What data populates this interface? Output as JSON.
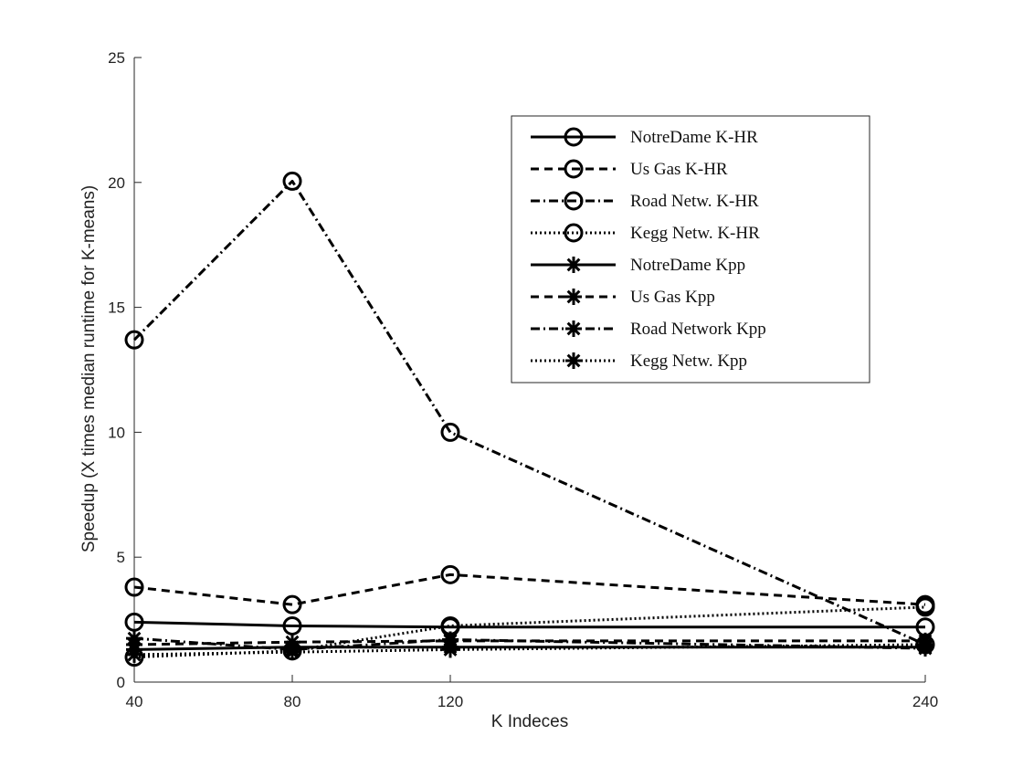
{
  "chart_data": {
    "type": "line",
    "title": "",
    "xlabel": "K Indeces",
    "ylabel": "Speedup (X times median runtime for K-means)",
    "x_ticks": [
      "40",
      "80",
      "120",
      "240"
    ],
    "y_ticks": [
      "0",
      "5",
      "10",
      "15",
      "20",
      "25"
    ],
    "ylim": [
      0,
      25
    ],
    "grid": false,
    "legend_position": "top-right",
    "series": [
      {
        "name": "NotreDame K-HR",
        "line_style": "solid",
        "marker": "circle",
        "values": [
          2.4,
          2.25,
          2.2,
          2.2
        ]
      },
      {
        "name": "Us Gas K-HR",
        "line_style": "dashed",
        "marker": "circle",
        "values": [
          3.8,
          3.1,
          4.3,
          3.1
        ]
      },
      {
        "name": "Road Netw. K-HR",
        "line_style": "dashdot",
        "marker": "circle",
        "values": [
          13.7,
          20.05,
          10.0,
          1.5
        ]
      },
      {
        "name": "Kegg Netw. K-HR",
        "line_style": "dotted",
        "marker": "circle",
        "values": [
          1.0,
          1.25,
          2.25,
          3.0
        ]
      },
      {
        "name": "NotreDame Kpp",
        "line_style": "solid",
        "marker": "asterisk",
        "values": [
          1.3,
          1.4,
          1.4,
          1.4
        ]
      },
      {
        "name": "Us Gas Kpp",
        "line_style": "dashed",
        "marker": "asterisk",
        "values": [
          1.5,
          1.6,
          1.65,
          1.65
        ]
      },
      {
        "name": "Road Network Kpp",
        "line_style": "dashdot",
        "marker": "asterisk",
        "values": [
          1.75,
          1.3,
          1.7,
          1.35
        ]
      },
      {
        "name": "Kegg Netw. Kpp",
        "line_style": "dotted",
        "marker": "asterisk",
        "values": [
          1.1,
          1.2,
          1.3,
          1.5
        ]
      }
    ]
  }
}
